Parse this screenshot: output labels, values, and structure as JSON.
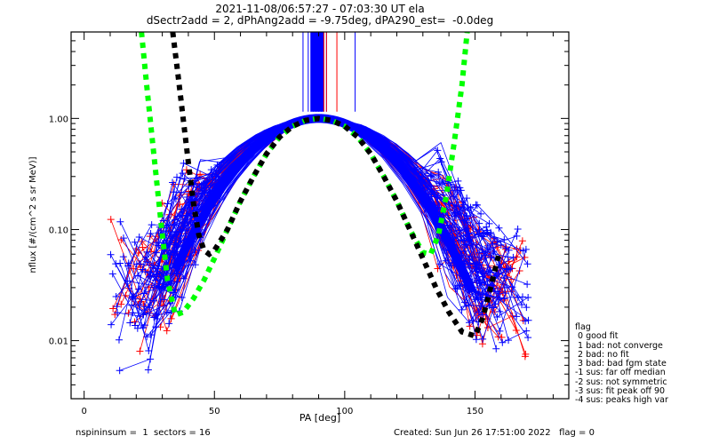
{
  "chart_data": {
    "type": "line",
    "title": "2021-11-08/06:57:27 - 07:03:30 UT ela",
    "subtitle": "dSectr2add = 2, dPhAng2add = -9.75deg, dPA290_est=  -0.0deg",
    "xlabel": "PA [deg]",
    "ylabel": "nflux [#/(cm^2 s sr MeV)]",
    "xlim": [
      -5,
      186
    ],
    "ylim": [
      0.003,
      6.0
    ],
    "yscale": "log",
    "xticks": [
      0,
      50,
      100,
      150
    ],
    "xtick_labels": [
      "0",
      "50",
      "100",
      "150"
    ],
    "yticks": [
      0.01,
      0.1,
      1.0
    ],
    "ytick_labels": [
      "0.01",
      "0.10",
      "1.00"
    ],
    "grid": false,
    "series": [
      {
        "name": "fit-green",
        "style": "dashed",
        "color": "#00ff00",
        "x": [
          22,
          24,
          26,
          28,
          30,
          32,
          35,
          38,
          42,
          46,
          50,
          55,
          60,
          65,
          70,
          75,
          80,
          85,
          90,
          95,
          100,
          105,
          110,
          115,
          120,
          125,
          130,
          133,
          136,
          139,
          142,
          145,
          147
        ],
        "y": [
          6.0,
          2.0,
          0.7,
          0.25,
          0.09,
          0.035,
          0.017,
          0.018,
          0.024,
          0.035,
          0.055,
          0.1,
          0.18,
          0.3,
          0.48,
          0.68,
          0.85,
          0.96,
          1.0,
          0.96,
          0.85,
          0.68,
          0.48,
          0.3,
          0.18,
          0.1,
          0.062,
          0.06,
          0.09,
          0.2,
          0.6,
          2.0,
          6.0
        ]
      },
      {
        "name": "fit-black",
        "style": "dashed",
        "color": "#000000",
        "x": [
          34,
          36,
          38,
          40,
          42,
          44,
          46,
          48,
          50,
          55,
          60,
          65,
          70,
          75,
          80,
          85,
          90,
          95,
          100,
          105,
          110,
          115,
          120,
          125,
          130,
          135,
          140,
          145,
          150,
          153,
          156,
          159
        ],
        "y": [
          6.0,
          2.5,
          1.0,
          0.4,
          0.17,
          0.09,
          0.065,
          0.06,
          0.065,
          0.1,
          0.18,
          0.3,
          0.48,
          0.68,
          0.85,
          0.96,
          1.0,
          0.96,
          0.85,
          0.68,
          0.48,
          0.3,
          0.18,
          0.1,
          0.055,
          0.03,
          0.018,
          0.012,
          0.011,
          0.016,
          0.03,
          0.058
        ]
      }
    ],
    "traces": {
      "blue_count": 70,
      "red_count": 35,
      "blue_color": "#0000ff",
      "red_color": "#ff0000",
      "vertical_lines_blue_x": [
        84,
        86,
        87,
        88,
        89,
        90,
        91,
        93,
        104
      ],
      "vertical_lines_red_x": [
        92,
        93,
        97
      ]
    }
  },
  "legend": {
    "title": "flag",
    "items": [
      " 0 good fit",
      " 1 bad: not converge",
      " 2 bad: no fit",
      " 3 bad: bad fgm state",
      "-1 sus: far off median",
      "-2 sus: not symmetric",
      "-3 sus: fit peak off 90",
      "-4 sus: peaks high var"
    ]
  },
  "footer": {
    "left": "nspininsum =  1  sectors = 16",
    "right": "Created: Sun Jun 26 17:51:00 2022   flag = 0"
  }
}
